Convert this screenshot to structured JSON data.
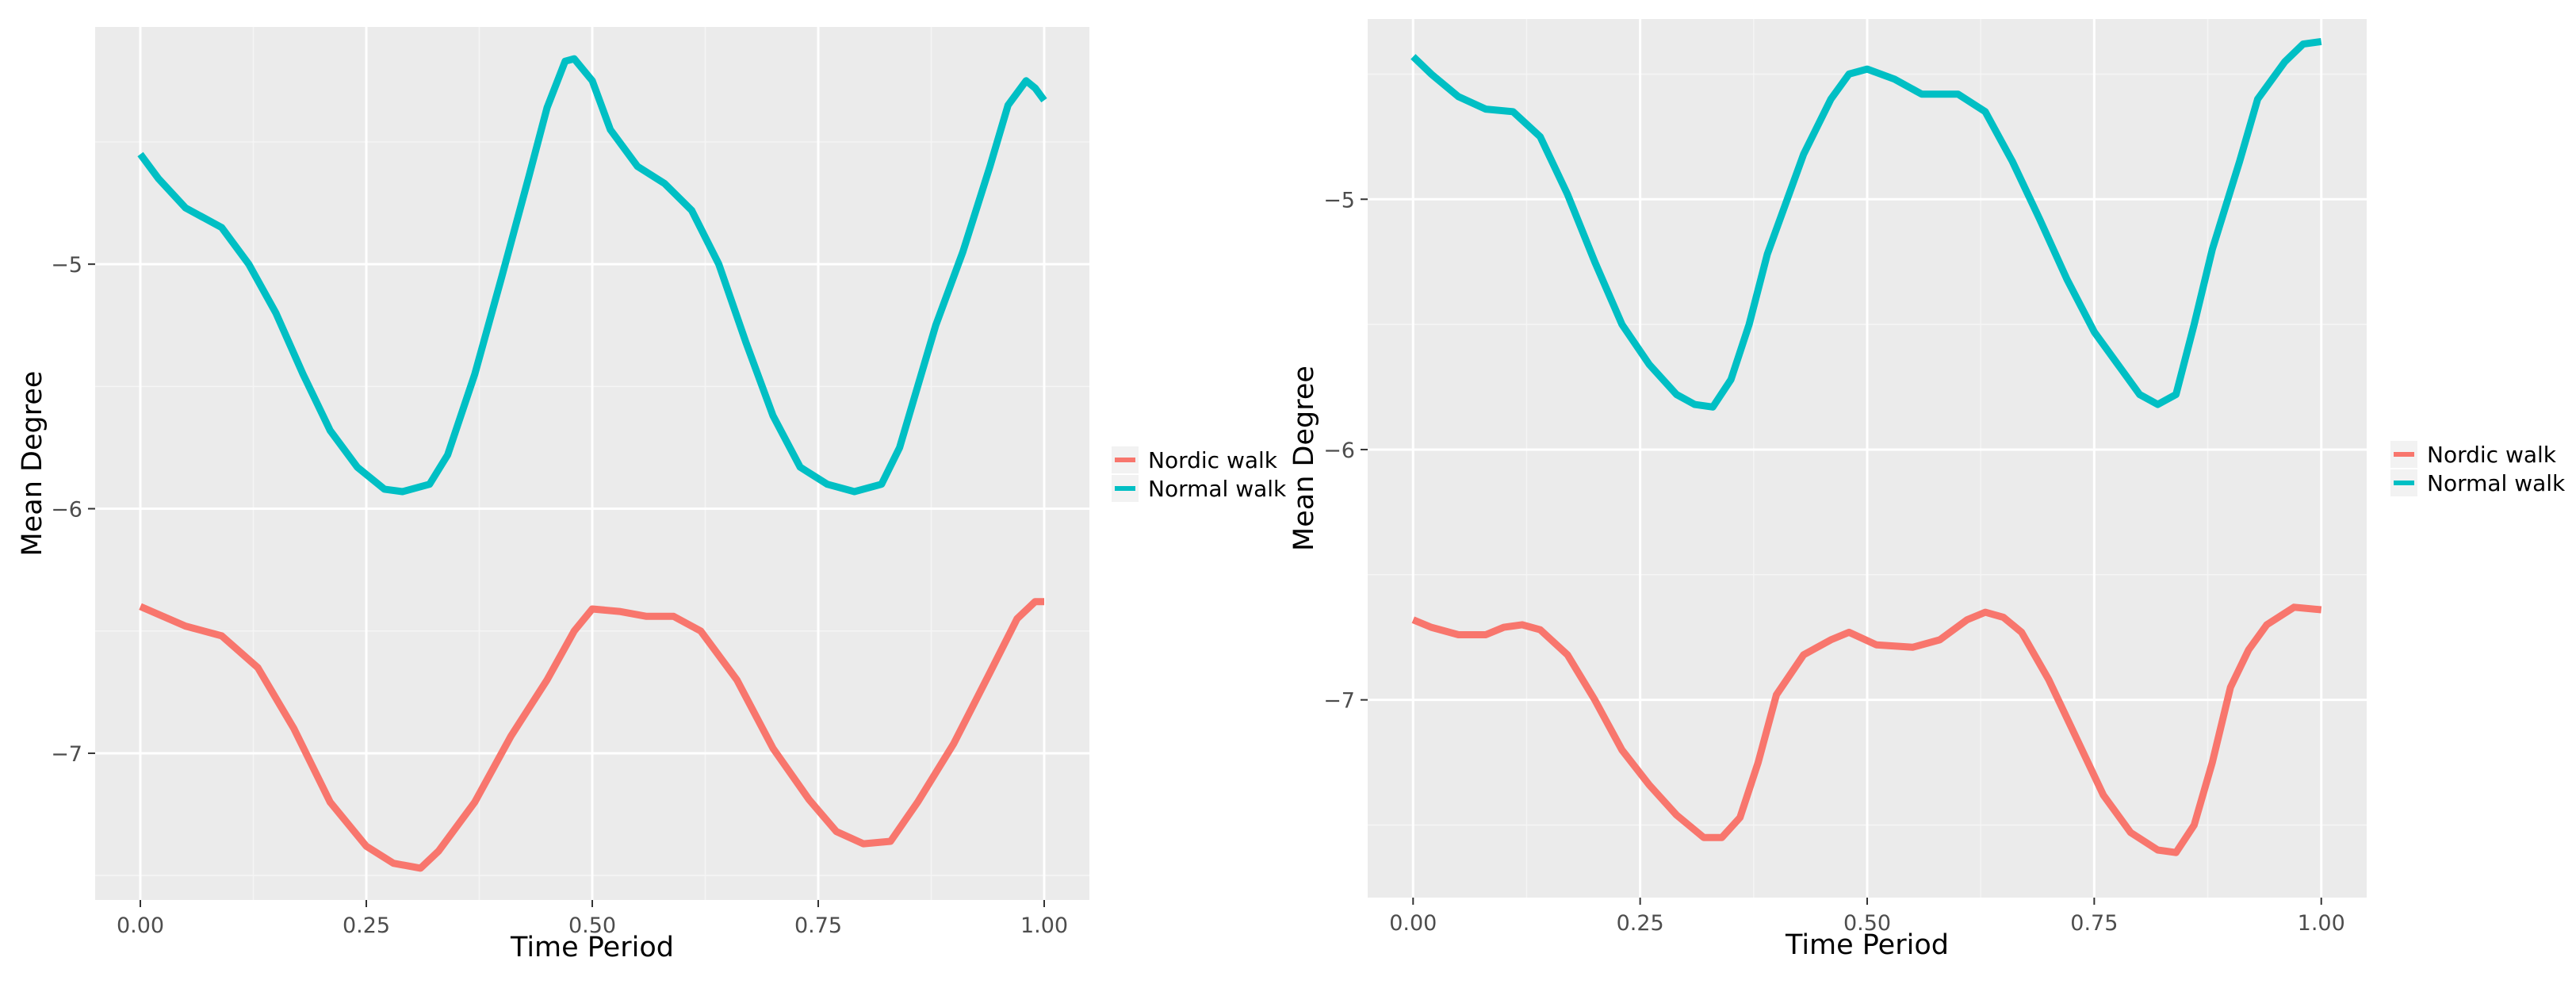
{
  "chart_data": [
    {
      "type": "line",
      "title": "",
      "xlabel": "Time Period",
      "ylabel": "Mean Degree",
      "xlim": [
        -0.05,
        1.05
      ],
      "ylim": [
        -7.6,
        -4.03
      ],
      "xticks": [
        0.0,
        0.25,
        0.5,
        0.75,
        1.0
      ],
      "xtick_labels": [
        "0.00",
        "0.25",
        "0.50",
        "0.75",
        "1.00"
      ],
      "yticks": [
        -5,
        -6,
        -7
      ],
      "ytick_labels": [
        "−5",
        "−6",
        "−7"
      ],
      "grid": true,
      "legend_position": "right",
      "series": [
        {
          "name": "Nordic walk",
          "color": "#F8766D",
          "points": [
            [
              0.0,
              -6.4
            ],
            [
              0.05,
              -6.48
            ],
            [
              0.09,
              -6.52
            ],
            [
              0.13,
              -6.65
            ],
            [
              0.17,
              -6.9
            ],
            [
              0.21,
              -7.2
            ],
            [
              0.25,
              -7.38
            ],
            [
              0.28,
              -7.45
            ],
            [
              0.31,
              -7.47
            ],
            [
              0.33,
              -7.4
            ],
            [
              0.37,
              -7.2
            ],
            [
              0.41,
              -6.93
            ],
            [
              0.45,
              -6.7
            ],
            [
              0.48,
              -6.5
            ],
            [
              0.5,
              -6.41
            ],
            [
              0.53,
              -6.42
            ],
            [
              0.56,
              -6.44
            ],
            [
              0.59,
              -6.44
            ],
            [
              0.62,
              -6.5
            ],
            [
              0.66,
              -6.7
            ],
            [
              0.7,
              -6.98
            ],
            [
              0.74,
              -7.19
            ],
            [
              0.77,
              -7.32
            ],
            [
              0.8,
              -7.37
            ],
            [
              0.83,
              -7.36
            ],
            [
              0.86,
              -7.2
            ],
            [
              0.9,
              -6.96
            ],
            [
              0.94,
              -6.67
            ],
            [
              0.97,
              -6.45
            ],
            [
              0.99,
              -6.38
            ],
            [
              1.0,
              -6.38
            ]
          ]
        },
        {
          "name": "Normal walk",
          "color": "#00BFC4",
          "points": [
            [
              0.0,
              -4.55
            ],
            [
              0.02,
              -4.65
            ],
            [
              0.05,
              -4.77
            ],
            [
              0.09,
              -4.85
            ],
            [
              0.12,
              -5.0
            ],
            [
              0.15,
              -5.2
            ],
            [
              0.18,
              -5.45
            ],
            [
              0.21,
              -5.68
            ],
            [
              0.24,
              -5.83
            ],
            [
              0.27,
              -5.92
            ],
            [
              0.29,
              -5.93
            ],
            [
              0.32,
              -5.9
            ],
            [
              0.34,
              -5.78
            ],
            [
              0.37,
              -5.45
            ],
            [
              0.4,
              -5.05
            ],
            [
              0.43,
              -4.64
            ],
            [
              0.45,
              -4.36
            ],
            [
              0.47,
              -4.17
            ],
            [
              0.48,
              -4.16
            ],
            [
              0.5,
              -4.25
            ],
            [
              0.52,
              -4.45
            ],
            [
              0.55,
              -4.6
            ],
            [
              0.58,
              -4.67
            ],
            [
              0.61,
              -4.78
            ],
            [
              0.64,
              -5.0
            ],
            [
              0.67,
              -5.32
            ],
            [
              0.7,
              -5.62
            ],
            [
              0.73,
              -5.83
            ],
            [
              0.76,
              -5.9
            ],
            [
              0.79,
              -5.93
            ],
            [
              0.82,
              -5.9
            ],
            [
              0.84,
              -5.75
            ],
            [
              0.86,
              -5.5
            ],
            [
              0.88,
              -5.25
            ],
            [
              0.91,
              -4.95
            ],
            [
              0.94,
              -4.6
            ],
            [
              0.96,
              -4.35
            ],
            [
              0.98,
              -4.25
            ],
            [
              0.99,
              -4.28
            ],
            [
              1.0,
              -4.33
            ]
          ]
        }
      ]
    },
    {
      "type": "line",
      "title": "",
      "xlabel": "Time Period",
      "ylabel": "Mean Degree",
      "xlim": [
        -0.05,
        1.05
      ],
      "ylim": [
        -7.79,
        -4.28
      ],
      "xticks": [
        0.0,
        0.25,
        0.5,
        0.75,
        1.0
      ],
      "xtick_labels": [
        "0.00",
        "0.25",
        "0.50",
        "0.75",
        "1.00"
      ],
      "yticks": [
        -5,
        -6,
        -7
      ],
      "ytick_labels": [
        "−5",
        "−6",
        "−7"
      ],
      "grid": true,
      "legend_position": "right",
      "series": [
        {
          "name": "Nordic walk",
          "color": "#F8766D",
          "points": [
            [
              0.0,
              -6.68
            ],
            [
              0.02,
              -6.71
            ],
            [
              0.05,
              -6.74
            ],
            [
              0.08,
              -6.74
            ],
            [
              0.1,
              -6.71
            ],
            [
              0.12,
              -6.7
            ],
            [
              0.14,
              -6.72
            ],
            [
              0.17,
              -6.82
            ],
            [
              0.2,
              -7.0
            ],
            [
              0.23,
              -7.2
            ],
            [
              0.26,
              -7.34
            ],
            [
              0.29,
              -7.46
            ],
            [
              0.32,
              -7.55
            ],
            [
              0.34,
              -7.55
            ],
            [
              0.36,
              -7.47
            ],
            [
              0.38,
              -7.25
            ],
            [
              0.4,
              -6.98
            ],
            [
              0.43,
              -6.82
            ],
            [
              0.46,
              -6.76
            ],
            [
              0.48,
              -6.73
            ],
            [
              0.51,
              -6.78
            ],
            [
              0.55,
              -6.79
            ],
            [
              0.58,
              -6.76
            ],
            [
              0.61,
              -6.68
            ],
            [
              0.63,
              -6.65
            ],
            [
              0.65,
              -6.67
            ],
            [
              0.67,
              -6.73
            ],
            [
              0.7,
              -6.92
            ],
            [
              0.73,
              -7.15
            ],
            [
              0.76,
              -7.38
            ],
            [
              0.79,
              -7.53
            ],
            [
              0.82,
              -7.6
            ],
            [
              0.84,
              -7.61
            ],
            [
              0.86,
              -7.5
            ],
            [
              0.88,
              -7.25
            ],
            [
              0.9,
              -6.95
            ],
            [
              0.92,
              -6.8
            ],
            [
              0.94,
              -6.7
            ],
            [
              0.97,
              -6.63
            ],
            [
              1.0,
              -6.64
            ]
          ]
        },
        {
          "name": "Normal walk",
          "color": "#00BFC4",
          "points": [
            [
              0.0,
              -4.43
            ],
            [
              0.02,
              -4.5
            ],
            [
              0.05,
              -4.59
            ],
            [
              0.08,
              -4.64
            ],
            [
              0.11,
              -4.65
            ],
            [
              0.14,
              -4.75
            ],
            [
              0.17,
              -4.98
            ],
            [
              0.2,
              -5.25
            ],
            [
              0.23,
              -5.5
            ],
            [
              0.26,
              -5.66
            ],
            [
              0.29,
              -5.78
            ],
            [
              0.31,
              -5.82
            ],
            [
              0.33,
              -5.83
            ],
            [
              0.35,
              -5.72
            ],
            [
              0.37,
              -5.5
            ],
            [
              0.39,
              -5.22
            ],
            [
              0.41,
              -5.02
            ],
            [
              0.43,
              -4.82
            ],
            [
              0.46,
              -4.6
            ],
            [
              0.48,
              -4.5
            ],
            [
              0.5,
              -4.48
            ],
            [
              0.53,
              -4.52
            ],
            [
              0.56,
              -4.58
            ],
            [
              0.6,
              -4.58
            ],
            [
              0.63,
              -4.65
            ],
            [
              0.66,
              -4.85
            ],
            [
              0.69,
              -5.08
            ],
            [
              0.72,
              -5.32
            ],
            [
              0.75,
              -5.53
            ],
            [
              0.78,
              -5.68
            ],
            [
              0.8,
              -5.78
            ],
            [
              0.82,
              -5.82
            ],
            [
              0.84,
              -5.78
            ],
            [
              0.86,
              -5.5
            ],
            [
              0.88,
              -5.2
            ],
            [
              0.91,
              -4.85
            ],
            [
              0.93,
              -4.6
            ],
            [
              0.96,
              -4.45
            ],
            [
              0.98,
              -4.38
            ],
            [
              1.0,
              -4.37
            ]
          ]
        }
      ]
    }
  ]
}
